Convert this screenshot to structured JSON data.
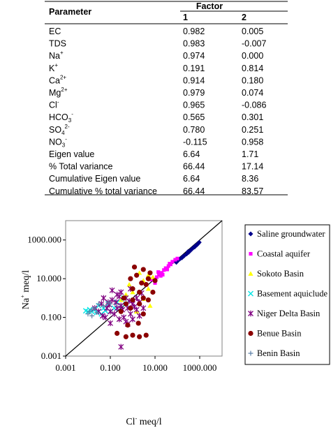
{
  "table": {
    "header": {
      "parameter": "Parameter",
      "factor": "Factor",
      "col1": "1",
      "col2": "2"
    },
    "rows": [
      {
        "base": "EC",
        "sup": "",
        "sub": "",
        "sup2": "",
        "v1": "0.982",
        "v2": "0.005"
      },
      {
        "base": "TDS",
        "sup": "",
        "sub": "",
        "sup2": "",
        "v1": "0.983",
        "v2": "-0.007"
      },
      {
        "base": "Na",
        "sup": "+",
        "sub": "",
        "sup2": "",
        "v1": "0.974",
        "v2": "0.000"
      },
      {
        "base": "K",
        "sup": "+",
        "sub": "",
        "sup2": "",
        "v1": "0.191",
        "v2": "0.814"
      },
      {
        "base": "Ca",
        "sup": "2+",
        "sub": "",
        "sup2": "",
        "v1": "0.914",
        "v2": "0.180"
      },
      {
        "base": "Mg",
        "sup": "2+",
        "sub": "",
        "sup2": "",
        "v1": "0.979",
        "v2": "0.074"
      },
      {
        "base": "Cl",
        "sup": "-",
        "sub": "",
        "sup2": "",
        "v1": "0.965",
        "v2": "-0.086"
      },
      {
        "base": "HCO",
        "sup": "",
        "sub": "3",
        "sup2": "-",
        "v1": "0.565",
        "v2": "0.301"
      },
      {
        "base": "SO",
        "sup": "",
        "sub": "4",
        "sup2": "2-",
        "v1": "0.780",
        "v2": "0.251"
      },
      {
        "base": "NO",
        "sup": "",
        "sub": "3",
        "sup2": "-",
        "v1": "-0.115",
        "v2": "0.958"
      },
      {
        "base": "Eigen value",
        "sup": "",
        "sub": "",
        "sup2": "",
        "v1": "6.64",
        "v2": "1.71"
      },
      {
        "base": "% Total variance",
        "sup": "",
        "sub": "",
        "sup2": "",
        "v1": "66.44",
        "v2": "17.14"
      },
      {
        "base": "Cumulative Eigen value",
        "sup": "",
        "sub": "",
        "sup2": "",
        "v1": "6.64",
        "v2": "8.36"
      },
      {
        "base": "Cumulative % total variance",
        "sup": "",
        "sub": "",
        "sup2": "",
        "v1": "66.44",
        "v2": "83.57"
      }
    ]
  },
  "chart_data": {
    "type": "scatter",
    "x_scale": "log",
    "y_scale": "log",
    "xlim": [
      0.001,
      10000
    ],
    "ylim": [
      0.001,
      10000
    ],
    "xticks": [
      "0.001",
      "0.100",
      "10.000",
      "1000.000"
    ],
    "yticks": [
      "0.001",
      "0.100",
      "10.000",
      "1000.000"
    ],
    "xlabel": {
      "base": "Cl",
      "sup": "-",
      "rest": " meq/l"
    },
    "ylabel": {
      "base": "Na",
      "sup": "+",
      "rest": " meq/l"
    },
    "grid": false,
    "legend_position": "right",
    "reference_line": {
      "from": [
        0.001,
        0.001
      ],
      "to": [
        10000,
        10000
      ],
      "color": "#000000"
    },
    "series": [
      {
        "name": "Saline groundwater",
        "marker": "diamond",
        "color": "#00008b",
        "points": [
          [
            90,
            70
          ],
          [
            110,
            90
          ],
          [
            130,
            105
          ],
          [
            160,
            120
          ],
          [
            200,
            150
          ],
          [
            260,
            190
          ],
          [
            320,
            230
          ],
          [
            400,
            300
          ],
          [
            470,
            360
          ],
          [
            550,
            420
          ],
          [
            650,
            500
          ],
          [
            750,
            560
          ],
          [
            850,
            650
          ],
          [
            950,
            750
          ],
          [
            600,
            440
          ],
          [
            300,
            250
          ],
          [
            180,
            140
          ]
        ]
      },
      {
        "name": "Coastal aquifer",
        "marker": "square",
        "color": "#ff00ff",
        "points": [
          [
            8,
            10
          ],
          [
            12,
            12
          ],
          [
            15,
            18
          ],
          [
            20,
            20
          ],
          [
            25,
            28
          ],
          [
            30,
            35
          ],
          [
            40,
            45
          ],
          [
            50,
            55
          ],
          [
            60,
            75
          ],
          [
            80,
            95
          ],
          [
            100,
            110
          ],
          [
            10,
            6
          ],
          [
            7,
            9
          ],
          [
            18,
            14
          ],
          [
            35,
            30
          ],
          [
            45,
            60
          ],
          [
            14,
            22
          ],
          [
            22,
            16
          ]
        ]
      },
      {
        "name": "Sokoto Basin",
        "marker": "triangle",
        "color": "#ffff00",
        "points": [
          [
            0.3,
            0.8
          ],
          [
            0.5,
            1.5
          ],
          [
            1,
            2
          ],
          [
            2,
            20
          ],
          [
            3,
            8
          ],
          [
            5,
            3
          ],
          [
            5,
            15
          ],
          [
            8,
            12
          ],
          [
            1.5,
            0.2
          ],
          [
            6,
            0.4
          ],
          [
            0.7,
            5
          ],
          [
            3,
            0.9
          ]
        ]
      },
      {
        "name": "Basement aquiclude",
        "marker": "x",
        "color": "#00e5e5",
        "points": [
          [
            0.01,
            0.2
          ],
          [
            0.015,
            0.2
          ],
          [
            0.02,
            0.25
          ],
          [
            0.03,
            0.4
          ],
          [
            0.05,
            0.3
          ],
          [
            0.08,
            0.5
          ],
          [
            0.1,
            0.2
          ],
          [
            0.2,
            0.6
          ],
          [
            0.3,
            0.4
          ],
          [
            0.5,
            0.5
          ],
          [
            0.012,
            0.25
          ],
          [
            0.025,
            0.18
          ],
          [
            0.04,
            0.15
          ],
          [
            0.06,
            0.22
          ],
          [
            0.15,
            0.3
          ],
          [
            0.008,
            0.22
          ],
          [
            0.4,
            1
          ]
        ]
      },
      {
        "name": "Niger Delta Basin",
        "marker": "star",
        "color": "#800080",
        "points": [
          [
            0.02,
            0.3
          ],
          [
            0.03,
            0.2
          ],
          [
            0.04,
            0.5
          ],
          [
            0.05,
            1
          ],
          [
            0.06,
            0.1
          ],
          [
            0.07,
            0.3
          ],
          [
            0.08,
            0.6
          ],
          [
            0.1,
            0.2
          ],
          [
            0.1,
            0.05
          ],
          [
            0.12,
            0.8
          ],
          [
            0.15,
            0.15
          ],
          [
            0.2,
            1.5
          ],
          [
            0.2,
            0.3
          ],
          [
            0.25,
            0.08
          ],
          [
            0.3,
            2
          ],
          [
            0.3,
            0.4
          ],
          [
            0.4,
            0.1
          ],
          [
            0.5,
            1
          ],
          [
            0.5,
            0.06
          ],
          [
            0.6,
            0.3
          ],
          [
            0.8,
            3
          ],
          [
            0.8,
            0.15
          ],
          [
            1,
            0.5
          ],
          [
            1,
            0.08
          ],
          [
            1.5,
            1
          ],
          [
            1.5,
            0.25
          ],
          [
            2,
            0.6
          ],
          [
            2,
            0.12
          ],
          [
            3,
            0.3
          ],
          [
            0.3,
            0.003
          ],
          [
            0.09,
            0.45
          ],
          [
            0.18,
            0.6
          ],
          [
            0.35,
            0.25
          ],
          [
            0.7,
            0.7
          ],
          [
            1.2,
            0.35
          ],
          [
            0.045,
            0.12
          ],
          [
            0.6,
            0.045
          ],
          [
            2.5,
            1.8
          ],
          [
            0.12,
            2.5
          ],
          [
            0.25,
            1.2
          ]
        ]
      },
      {
        "name": "Benue Basin",
        "marker": "circle",
        "color": "#8b0000",
        "points": [
          [
            0.3,
            0.2
          ],
          [
            0.5,
            0.5
          ],
          [
            0.8,
            0.3
          ],
          [
            1,
            3
          ],
          [
            1,
            0.8
          ],
          [
            1.5,
            15
          ],
          [
            2,
            2
          ],
          [
            2,
            0.5
          ],
          [
            3,
            30
          ],
          [
            3,
            1
          ],
          [
            4,
            5
          ],
          [
            5,
            10
          ],
          [
            5,
            0.8
          ],
          [
            6,
            20
          ],
          [
            8,
            2
          ],
          [
            0.2,
            0.015
          ],
          [
            0.5,
            0.01
          ],
          [
            1,
            0.012
          ],
          [
            2,
            0.01
          ],
          [
            4,
            0.012
          ],
          [
            0.8,
            10
          ],
          [
            1.2,
            40
          ],
          [
            10,
            8
          ],
          [
            0.4,
            1
          ],
          [
            2.5,
            6
          ],
          [
            1.8,
            0.05
          ],
          [
            0.6,
            0.04
          ],
          [
            3,
            0.15
          ]
        ]
      },
      {
        "name": "Benin Basin",
        "marker": "plus",
        "color": "#5b7fa6",
        "points": [
          [
            0.01,
            0.15
          ],
          [
            0.012,
            0.2
          ],
          [
            0.015,
            0.25
          ],
          [
            0.02,
            0.3
          ],
          [
            0.03,
            0.5
          ],
          [
            0.05,
            0.4
          ],
          [
            0.08,
            0.6
          ],
          [
            0.1,
            0.5
          ],
          [
            0.015,
            0.12
          ],
          [
            0.025,
            0.18
          ]
        ]
      }
    ]
  }
}
